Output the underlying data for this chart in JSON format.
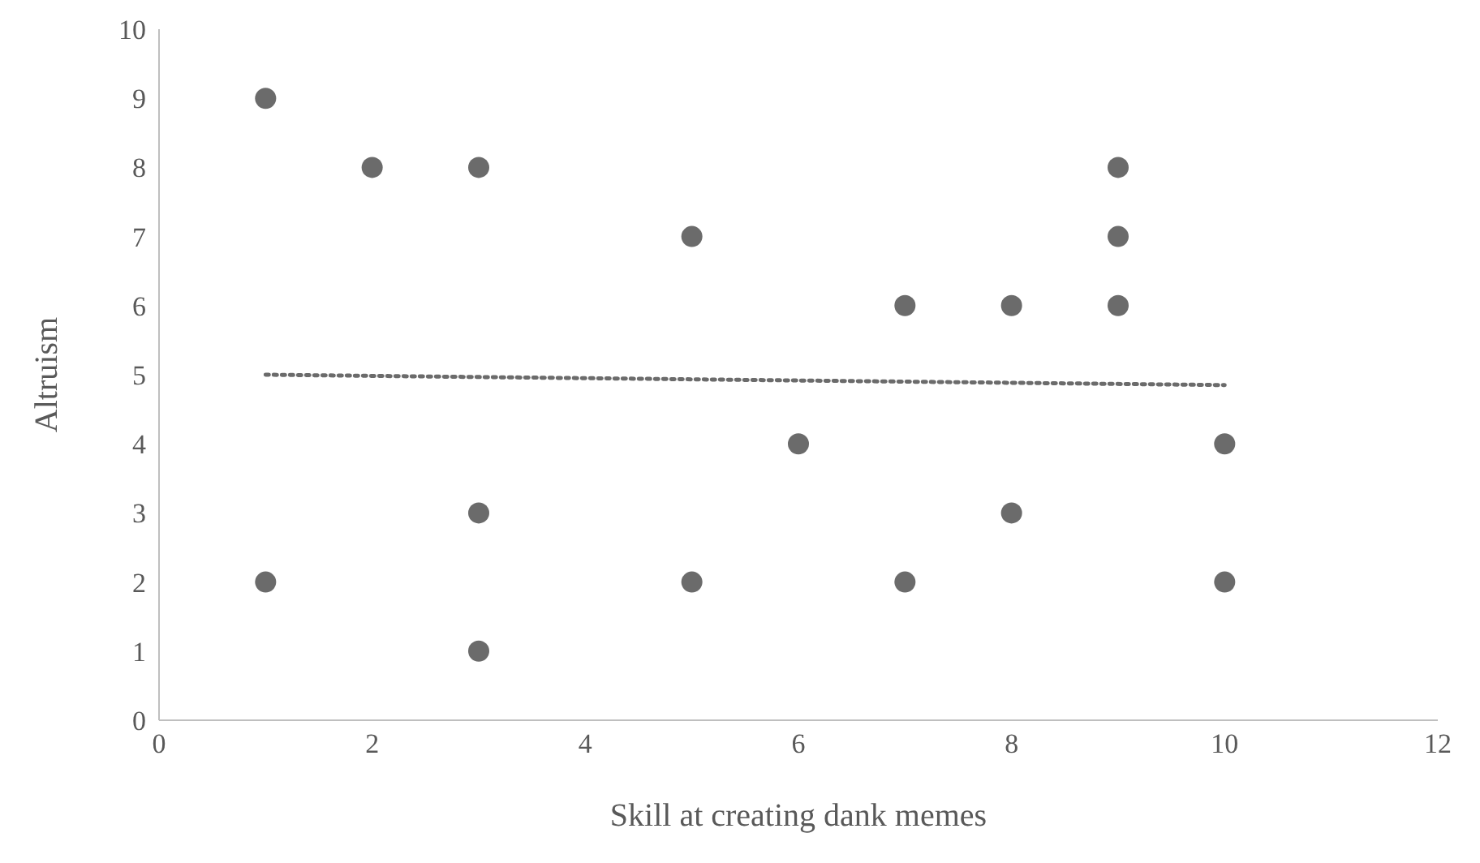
{
  "chart_data": {
    "type": "scatter",
    "xlabel": "Skill at creating dank memes",
    "ylabel": "Altruism",
    "xlim": [
      0,
      12
    ],
    "xticks": [
      0,
      2,
      4,
      6,
      8,
      10,
      12
    ],
    "ylim": [
      0,
      10
    ],
    "yticks": [
      0,
      1,
      2,
      3,
      4,
      5,
      6,
      7,
      8,
      9,
      10
    ],
    "grid": false,
    "legend": false,
    "series": [
      {
        "color": "#6b6b6b",
        "marker": "circle",
        "x": [
          1,
          2,
          3,
          5,
          7,
          8,
          9,
          9,
          9,
          6,
          10,
          3,
          8,
          1,
          5,
          7,
          10,
          3
        ],
        "values": [
          9,
          8,
          8,
          7,
          6,
          6,
          8,
          7,
          6,
          4,
          4,
          3,
          3,
          2,
          2,
          2,
          2,
          1
        ]
      },
      {
        "type": "line",
        "color": "#6b6b6b",
        "line_style": "dotted",
        "marker": "none",
        "x": [
          1,
          10
        ],
        "values": [
          5.0,
          4.85
        ]
      }
    ]
  }
}
